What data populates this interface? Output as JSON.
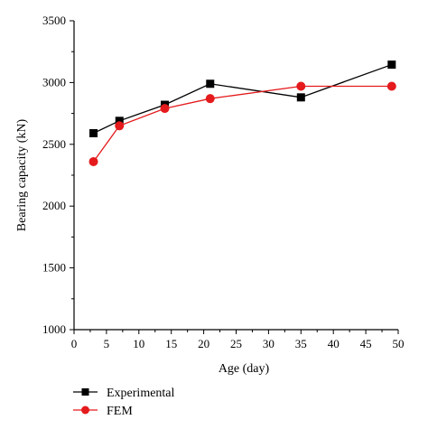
{
  "chart_data": {
    "type": "line",
    "xlabel": "Age (day)",
    "ylabel": "Bearing capacity (kN)",
    "xlim": [
      0,
      50
    ],
    "ylim": [
      1000,
      3500
    ],
    "xticks": [
      "0",
      "5",
      "10",
      "15",
      "20",
      "25",
      "30",
      "35",
      "40",
      "45",
      "50"
    ],
    "yticks": [
      "1000",
      "1500",
      "2000",
      "2500",
      "3000",
      "3500"
    ],
    "grid": false,
    "legend_position": "bottom-left",
    "series": [
      {
        "name": "Experimental",
        "color": "#000000",
        "marker": "square",
        "x": [
          3,
          7,
          14,
          21,
          35,
          49
        ],
        "y": [
          2590,
          2690,
          2820,
          2990,
          2880,
          3145
        ]
      },
      {
        "name": "FEM",
        "color": "#e41a1c",
        "marker": "circle",
        "x": [
          3,
          7,
          14,
          21,
          35,
          49
        ],
        "y": [
          2360,
          2650,
          2790,
          2870,
          2970,
          2970
        ]
      }
    ]
  }
}
